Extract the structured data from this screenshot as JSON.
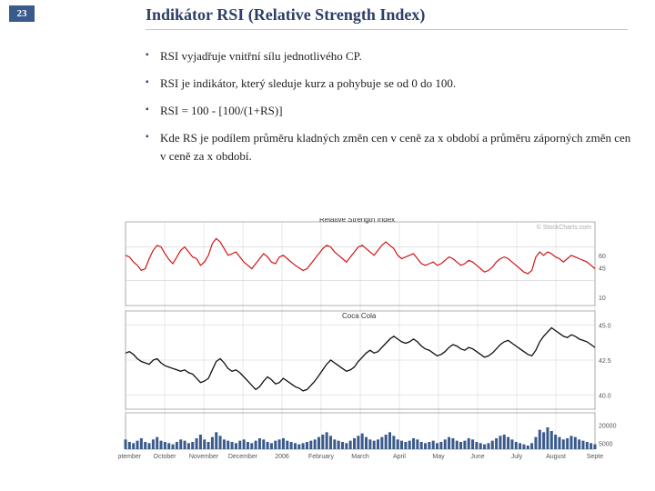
{
  "slide_number": "23",
  "title": "Indikátor RSI (Relative Strength Index)",
  "title_color": "#2d3e68",
  "slide_num_bg": "#3a5a8c",
  "underline_color": "#c5c5d8",
  "bullet_color": "#2b4a7a",
  "bullets": [
    "RSI vyjadřuje vnitřní sílu jednotlivého CP.",
    "RSI je indikátor, který sleduje kurz a pohybuje se od 0 do 100.",
    "RSI = 100 - [100/(1+RS)]",
    "Kde RS je podílem průměru kladných změn cen v ceně za x období a průměru záporných změn cen v ceně za x období."
  ],
  "chart": {
    "aspect_w": 560,
    "aspect_h": 280,
    "bg": "#ffffff",
    "grid_color": "#d0d0d0",
    "axis_color": "#808080",
    "text_color": "#555555",
    "top": {
      "title": "Relative Strength Index",
      "series_color": "#d01515",
      "yticks": [
        10,
        45,
        60
      ],
      "ylim": [
        0,
        100
      ],
      "band": {
        "low": 30,
        "high": 70,
        "color": "#e8e8e8"
      },
      "data": [
        60,
        58,
        52,
        48,
        42,
        44,
        56,
        66,
        72,
        70,
        62,
        55,
        50,
        58,
        66,
        70,
        64,
        58,
        56,
        48,
        52,
        60,
        74,
        80,
        76,
        68,
        60,
        62,
        64,
        58,
        52,
        48,
        44,
        50,
        56,
        62,
        58,
        52,
        50,
        58,
        60,
        56,
        52,
        48,
        45,
        42,
        44,
        50,
        56,
        62,
        68,
        72,
        70,
        64,
        60,
        56,
        52,
        58,
        64,
        70,
        72,
        68,
        64,
        60,
        66,
        72,
        76,
        72,
        68,
        60,
        56,
        58,
        60,
        62,
        56,
        50,
        48,
        50,
        52,
        48,
        50,
        54,
        58,
        56,
        52,
        48,
        50,
        54,
        52,
        48,
        44,
        40,
        42,
        46,
        52,
        56,
        58,
        56,
        52,
        48,
        44,
        40,
        38,
        42,
        58,
        64,
        60,
        64,
        62,
        58,
        56,
        52,
        56,
        60,
        58,
        56,
        54,
        52,
        48,
        44
      ]
    },
    "mid": {
      "title": "Coca Cola",
      "series_color": "#101010",
      "yticks": [
        40.0,
        42.5,
        45.0
      ],
      "ylim": [
        39,
        46
      ],
      "data": [
        43.0,
        43.1,
        42.9,
        42.6,
        42.4,
        42.3,
        42.2,
        42.5,
        42.6,
        42.3,
        42.1,
        42.0,
        41.9,
        41.8,
        41.7,
        41.8,
        41.6,
        41.5,
        41.2,
        40.9,
        41.0,
        41.2,
        41.8,
        42.4,
        42.6,
        42.3,
        41.9,
        41.7,
        41.8,
        41.6,
        41.3,
        41.0,
        40.7,
        40.4,
        40.6,
        41.0,
        41.3,
        41.1,
        40.8,
        40.9,
        41.2,
        41.0,
        40.8,
        40.6,
        40.5,
        40.3,
        40.4,
        40.7,
        41.0,
        41.4,
        41.8,
        42.2,
        42.5,
        42.3,
        42.1,
        41.9,
        41.7,
        41.8,
        42.0,
        42.4,
        42.7,
        43.0,
        43.2,
        43.0,
        43.1,
        43.4,
        43.7,
        44.0,
        44.2,
        44.0,
        43.8,
        43.7,
        43.8,
        44.0,
        43.8,
        43.5,
        43.3,
        43.2,
        43.0,
        42.8,
        42.9,
        43.1,
        43.4,
        43.6,
        43.5,
        43.3,
        43.2,
        43.4,
        43.3,
        43.1,
        42.9,
        42.7,
        42.8,
        43.0,
        43.3,
        43.6,
        43.8,
        43.9,
        43.7,
        43.5,
        43.3,
        43.1,
        42.9,
        42.8,
        43.2,
        43.8,
        44.2,
        44.5,
        44.8,
        44.6,
        44.4,
        44.2,
        44.1,
        44.3,
        44.2,
        44.0,
        43.9,
        43.8,
        43.6,
        43.4
      ]
    },
    "vol": {
      "series_color": "#3a5a8c",
      "ytick": [
        5000,
        20000
      ],
      "ylim": [
        0,
        30000
      ],
      "data": [
        8,
        6,
        5,
        7,
        9,
        6,
        5,
        8,
        10,
        7,
        6,
        5,
        4,
        6,
        8,
        7,
        5,
        6,
        9,
        12,
        8,
        6,
        10,
        14,
        11,
        8,
        7,
        6,
        5,
        7,
        8,
        6,
        5,
        7,
        9,
        8,
        6,
        5,
        7,
        8,
        9,
        7,
        6,
        5,
        4,
        5,
        6,
        7,
        8,
        10,
        12,
        14,
        11,
        8,
        7,
        6,
        5,
        7,
        9,
        11,
        13,
        10,
        8,
        7,
        8,
        10,
        12,
        14,
        11,
        8,
        7,
        6,
        7,
        9,
        8,
        6,
        5,
        6,
        7,
        5,
        6,
        8,
        10,
        9,
        7,
        6,
        7,
        9,
        8,
        6,
        5,
        4,
        5,
        7,
        9,
        11,
        12,
        10,
        8,
        6,
        5,
        4,
        3,
        5,
        10,
        16,
        14,
        18,
        15,
        12,
        10,
        8,
        9,
        11,
        10,
        8,
        7,
        6,
        5,
        4
      ]
    },
    "x_labels": [
      "September",
      "October",
      "November",
      "December",
      "2006",
      "February",
      "March",
      "April",
      "May",
      "June",
      "July",
      "August",
      "Septe"
    ],
    "watermark": "© StockCharts.com"
  }
}
